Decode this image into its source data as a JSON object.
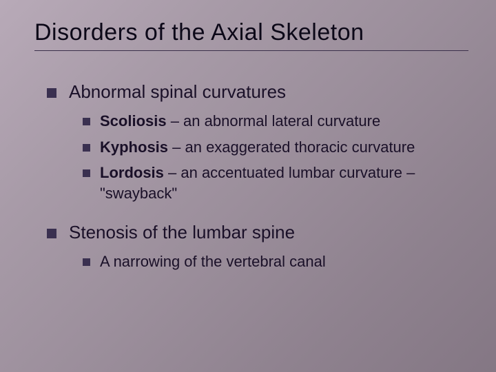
{
  "slide": {
    "title": "Disorders of the Axial Skeleton",
    "background_gradient": [
      "#b8aab8",
      "#a89ba8",
      "#9c8f9c",
      "#8f828f",
      "#847784"
    ],
    "text_color": "#1a1028",
    "bullet_color": "#3a3050",
    "title_fontsize": 34,
    "level1_fontsize": 26,
    "level2_fontsize": 22,
    "sections": [
      {
        "heading": "Abnormal spinal curvatures",
        "items": [
          {
            "term": "Scoliosis",
            "def": " – an abnormal lateral curvature"
          },
          {
            "term": "Kyphosis",
            "def": " – an exaggerated thoracic curvature"
          },
          {
            "term": "Lordosis",
            "def": " – an accentuated lumbar curvature – \"swayback\""
          }
        ]
      },
      {
        "heading": "Stenosis of the lumbar spine",
        "items": [
          {
            "term": "",
            "def": "A narrowing of the vertebral canal"
          }
        ]
      }
    ]
  }
}
